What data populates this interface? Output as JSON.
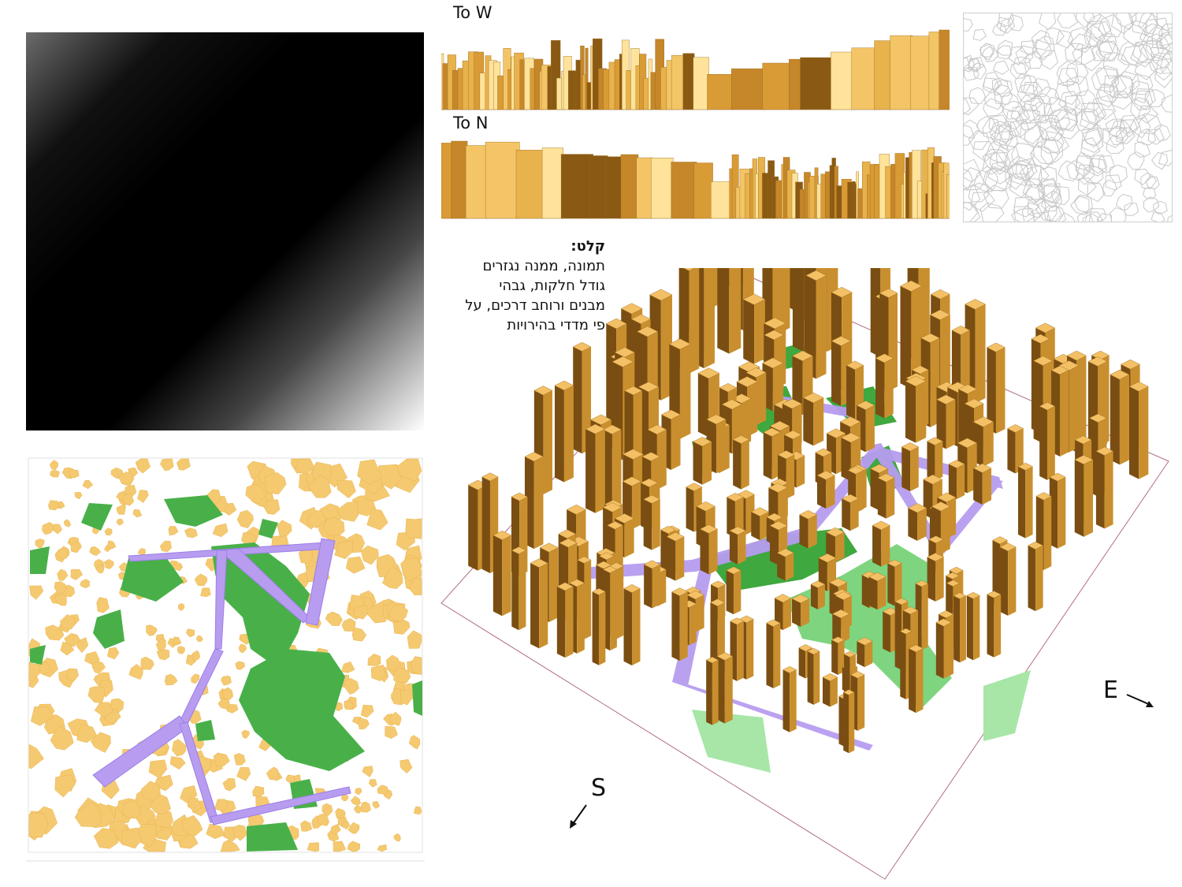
{
  "sections": {
    "to_w": "To W",
    "to_n": "To N"
  },
  "legend": {
    "heading": "קלט:",
    "lines": [
      "תמונה, ממנה נגזרים",
      "גודל חלקות, גבהי",
      "מבנים ורוחב דרכים, על",
      "פי מדדי בהירויות"
    ]
  },
  "compass": {
    "east": "E",
    "south": "S"
  },
  "colors": {
    "building": "#f5c970",
    "building_dark": "#7a4e12",
    "park": "#49b049",
    "road": "#b79cf0",
    "cell_stroke": "#bdbdbd"
  }
}
